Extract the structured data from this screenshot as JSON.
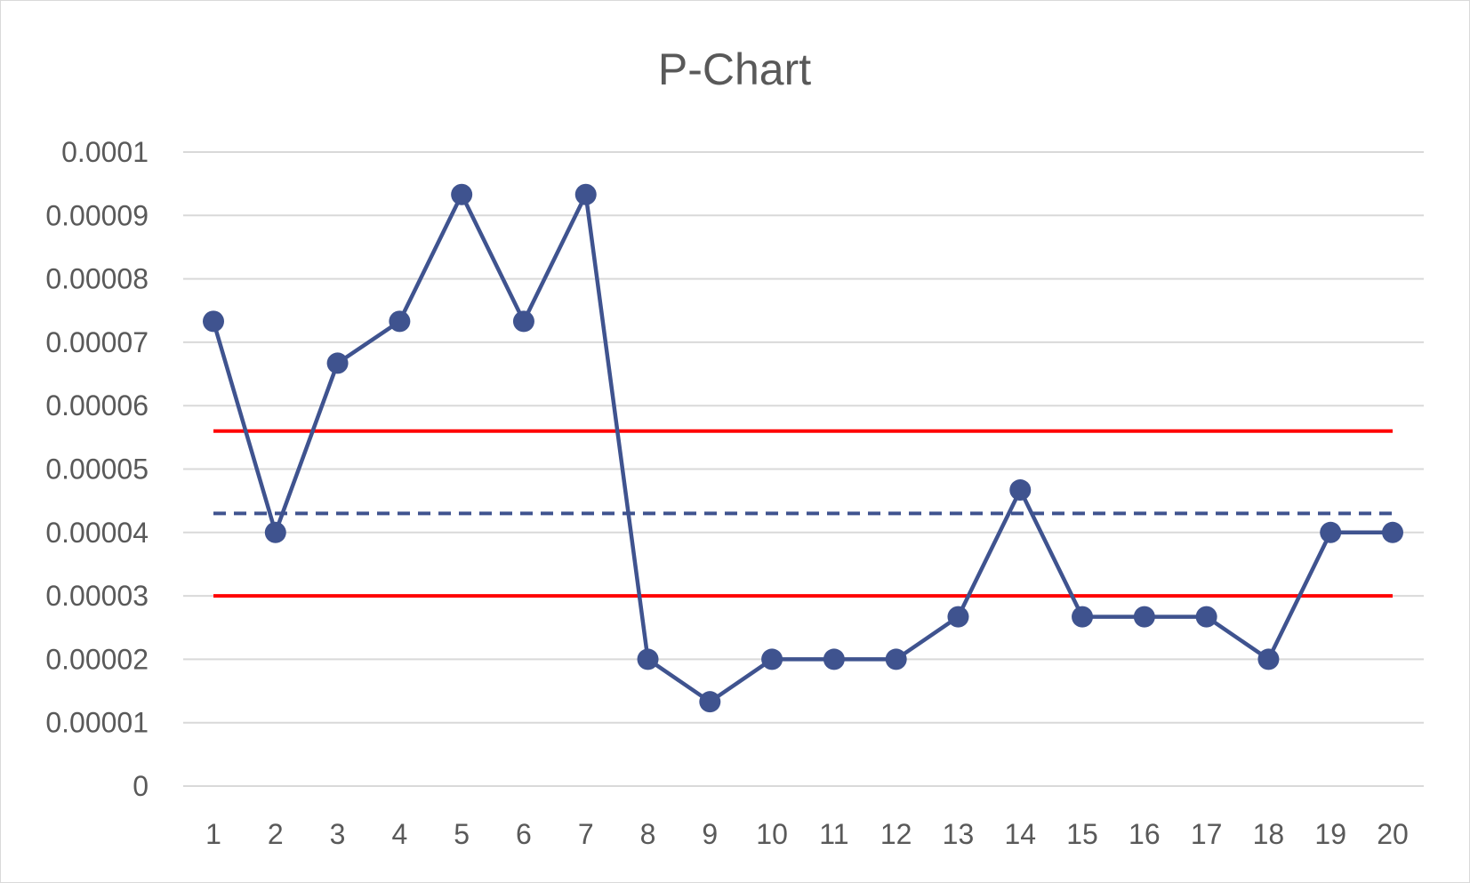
{
  "chart_data": {
    "type": "line",
    "title": "P-Chart",
    "xlabel": "",
    "ylabel": "",
    "categories": [
      "1",
      "2",
      "3",
      "4",
      "5",
      "6",
      "7",
      "8",
      "9",
      "10",
      "11",
      "12",
      "13",
      "14",
      "15",
      "16",
      "17",
      "18",
      "19",
      "20"
    ],
    "y_ticks": [
      "0",
      "0.00001",
      "0.00002",
      "0.00003",
      "0.00004",
      "0.00005",
      "0.00006",
      "0.00007",
      "0.00008",
      "0.00009",
      "0.0001"
    ],
    "ylim": [
      0,
      0.0001
    ],
    "grid": true,
    "legend": "none",
    "series": [
      {
        "style": "line-with-markers",
        "color": "#3f538f",
        "values": [
          7.33e-05,
          4e-05,
          6.67e-05,
          7.33e-05,
          9.33e-05,
          7.33e-05,
          9.33e-05,
          2e-05,
          1.33e-05,
          2e-05,
          2e-05,
          2e-05,
          2.67e-05,
          4.67e-05,
          2.67e-05,
          2.67e-05,
          2.67e-05,
          2e-05,
          4e-05,
          4e-05
        ]
      },
      {
        "style": "dashed",
        "color": "#3f538f",
        "values": [
          4.3e-05,
          4.3e-05,
          4.3e-05,
          4.3e-05,
          4.3e-05,
          4.3e-05,
          4.3e-05,
          4.3e-05,
          4.3e-05,
          4.3e-05,
          4.3e-05,
          4.3e-05,
          4.3e-05,
          4.3e-05,
          4.3e-05,
          4.3e-05,
          4.3e-05,
          4.3e-05,
          4.3e-05,
          4.3e-05
        ]
      },
      {
        "style": "solid",
        "color": "#ff0000",
        "values": [
          5.6e-05,
          5.6e-05,
          5.6e-05,
          5.6e-05,
          5.6e-05,
          5.6e-05,
          5.6e-05,
          5.6e-05,
          5.6e-05,
          5.6e-05,
          5.6e-05,
          5.6e-05,
          5.6e-05,
          5.6e-05,
          5.6e-05,
          5.6e-05,
          5.6e-05,
          5.6e-05,
          5.6e-05,
          5.6e-05
        ]
      },
      {
        "style": "solid",
        "color": "#ff0000",
        "values": [
          3e-05,
          3e-05,
          3e-05,
          3e-05,
          3e-05,
          3e-05,
          3e-05,
          3e-05,
          3e-05,
          3e-05,
          3e-05,
          3e-05,
          3e-05,
          3e-05,
          3e-05,
          3e-05,
          3e-05,
          3e-05,
          3e-05,
          3e-05
        ]
      }
    ]
  }
}
